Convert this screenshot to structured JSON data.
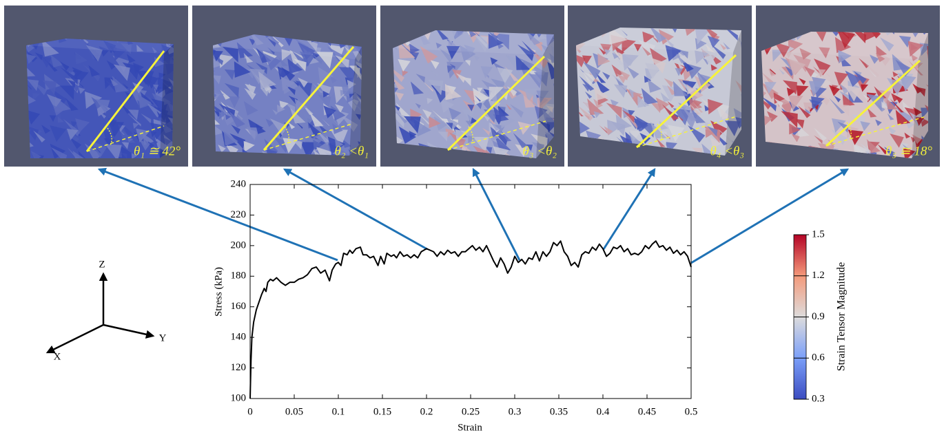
{
  "chart_data": {
    "type": "line",
    "x_label": "Strain",
    "y_label": "Stress (kPa)",
    "color": "#000000",
    "xlim": [
      0,
      0.5
    ],
    "ylim": [
      100,
      240
    ],
    "xticks": [
      0,
      0.05,
      0.1,
      0.15,
      0.2,
      0.25,
      0.3,
      0.35,
      0.4,
      0.45,
      0.5
    ],
    "yticks": [
      100,
      120,
      140,
      160,
      180,
      200,
      220,
      240
    ],
    "x": [
      0,
      0.001,
      0.002,
      0.004,
      0.007,
      0.01,
      0.013,
      0.016,
      0.018,
      0.02,
      0.023,
      0.026,
      0.03,
      0.035,
      0.04,
      0.045,
      0.05,
      0.055,
      0.06,
      0.065,
      0.07,
      0.075,
      0.08,
      0.085,
      0.09,
      0.093,
      0.097,
      0.1,
      0.103,
      0.106,
      0.11,
      0.113,
      0.116,
      0.12,
      0.125,
      0.128,
      0.132,
      0.136,
      0.14,
      0.145,
      0.148,
      0.152,
      0.155,
      0.16,
      0.163,
      0.166,
      0.17,
      0.174,
      0.178,
      0.182,
      0.186,
      0.19,
      0.194,
      0.2,
      0.204,
      0.208,
      0.212,
      0.216,
      0.22,
      0.224,
      0.228,
      0.232,
      0.236,
      0.24,
      0.244,
      0.248,
      0.252,
      0.256,
      0.26,
      0.264,
      0.268,
      0.272,
      0.276,
      0.28,
      0.284,
      0.288,
      0.292,
      0.296,
      0.3,
      0.304,
      0.308,
      0.312,
      0.316,
      0.32,
      0.324,
      0.328,
      0.332,
      0.336,
      0.34,
      0.344,
      0.348,
      0.352,
      0.356,
      0.36,
      0.364,
      0.368,
      0.372,
      0.376,
      0.38,
      0.384,
      0.388,
      0.392,
      0.396,
      0.4,
      0.404,
      0.408,
      0.412,
      0.416,
      0.42,
      0.424,
      0.428,
      0.432,
      0.436,
      0.44,
      0.444,
      0.448,
      0.452,
      0.456,
      0.46,
      0.464,
      0.468,
      0.472,
      0.476,
      0.48,
      0.484,
      0.488,
      0.492,
      0.496,
      0.5
    ],
    "values": [
      100,
      125,
      140,
      150,
      158,
      163,
      168,
      172,
      170,
      176,
      178,
      177,
      179,
      176,
      174,
      176,
      176,
      178,
      179,
      181,
      185,
      186,
      182,
      184,
      177,
      184,
      188,
      189,
      187,
      195,
      194,
      197,
      195,
      198,
      199,
      194,
      194,
      192,
      193,
      187,
      193,
      188,
      195,
      193,
      194,
      192,
      196,
      193,
      194,
      192,
      194,
      192,
      196,
      198,
      197,
      196,
      193,
      196,
      194,
      197,
      195,
      196,
      193,
      196,
      196,
      198,
      200,
      197,
      199,
      196,
      200,
      195,
      190,
      186,
      192,
      188,
      182,
      186,
      193,
      189,
      191,
      188,
      192,
      191,
      196,
      190,
      196,
      193,
      196,
      202,
      200,
      203,
      196,
      193,
      187,
      189,
      186,
      194,
      196,
      195,
      199,
      197,
      201,
      198,
      193,
      195,
      199,
      198,
      200,
      196,
      198,
      194,
      195,
      194,
      196,
      200,
      198,
      201,
      203,
      199,
      200,
      197,
      199,
      195,
      197,
      194,
      196,
      193,
      186
    ]
  },
  "panels": [
    {
      "label": "θ₁ ≅ 42°"
    },
    {
      "label": "θ₂ <θ₁"
    },
    {
      "label": "θ₃ <θ₂"
    },
    {
      "label": "θ₄ <θ₃"
    },
    {
      "label": "θ₅ ≅ 18°"
    }
  ],
  "colorbar": {
    "label": "Strain Tensor Magnitude",
    "lim": [
      0.3,
      1.5
    ],
    "ticks": [
      0.3,
      0.6,
      0.9,
      1.2,
      1.5
    ]
  },
  "axes_triad": {
    "labels": [
      "Z",
      "Y",
      "X"
    ]
  }
}
